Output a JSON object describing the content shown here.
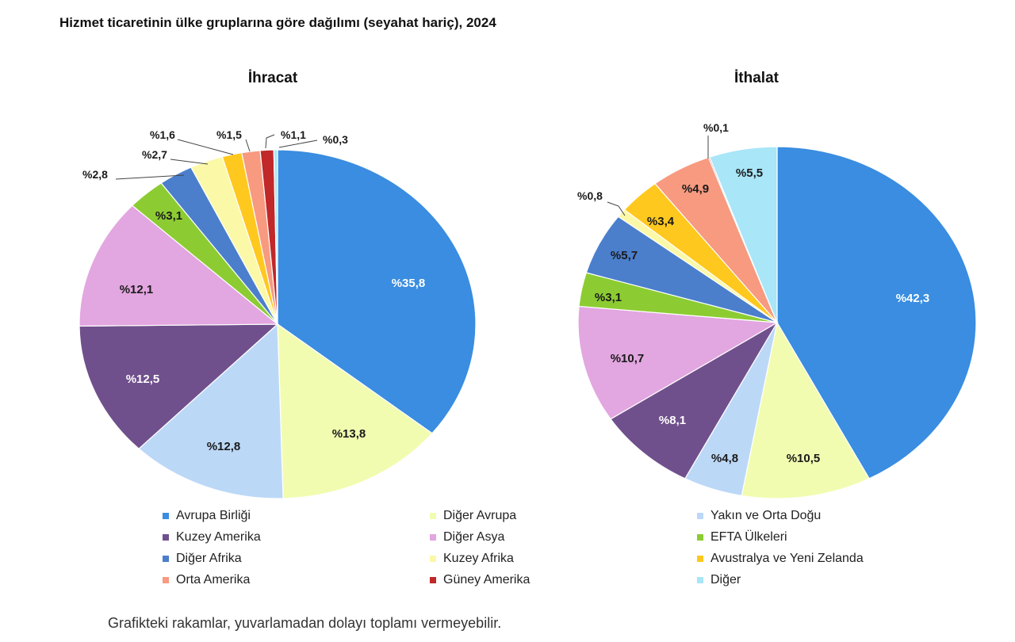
{
  "title": "Hizmet ticaretinin ülke gruplarına göre dağılımı (seyahat hariç), 2024",
  "footnote": "Grafikteki rakamlar, yuvarlamadan dolayı toplamı vermeyebilir.",
  "chart_data": [
    {
      "type": "pie",
      "title": "İhracat",
      "slices": [
        {
          "name": "Avrupa Birliği",
          "value": 35.8,
          "label": "%35,8",
          "color": "#3a8de0"
        },
        {
          "name": "Diğer Avrupa",
          "value": 13.8,
          "label": "%13,8",
          "color": "#f2fcb0"
        },
        {
          "name": "Yakın ve Orta Doğu",
          "value": 12.8,
          "label": "%12,8",
          "color": "#bcd8f7"
        },
        {
          "name": "Kuzey Amerika",
          "value": 12.5,
          "label": "%12,5",
          "color": "#70508c"
        },
        {
          "name": "Diğer Asya",
          "value": 12.1,
          "label": "%12,1",
          "color": "#e2a6e0"
        },
        {
          "name": "EFTA Ülkeleri",
          "value": 3.1,
          "label": "%3,1",
          "color": "#8ccc32"
        },
        {
          "name": "Diğer Afrika",
          "value": 2.8,
          "label": "%2,8",
          "color": "#4b7fcc"
        },
        {
          "name": "Kuzey Afrika",
          "value": 2.7,
          "label": "%2,7",
          "color": "#fbf8a8"
        },
        {
          "name": "Avustralya ve Yeni Zelanda",
          "value": 1.6,
          "label": "%1,6",
          "color": "#ffc81e"
        },
        {
          "name": "Orta Amerika",
          "value": 1.5,
          "label": "%1,5",
          "color": "#f79a80"
        },
        {
          "name": "Güney Amerika",
          "value": 1.1,
          "label": "%1,1",
          "color": "#c0282a"
        },
        {
          "name": "Diğer",
          "value": 0.3,
          "label": "%0,3",
          "color": "#a8e6f8"
        }
      ]
    },
    {
      "type": "pie",
      "title": "İthalat",
      "slices": [
        {
          "name": "Avrupa Birliği",
          "value": 42.3,
          "label": "%42,3",
          "color": "#3a8de0"
        },
        {
          "name": "Diğer Avrupa",
          "value": 10.5,
          "label": "%10,5",
          "color": "#f2fcb0"
        },
        {
          "name": "Yakın ve Orta Doğu",
          "value": 4.8,
          "label": "%4,8",
          "color": "#bcd8f7"
        },
        {
          "name": "Kuzey Amerika",
          "value": 8.1,
          "label": "%8,1",
          "color": "#70508c"
        },
        {
          "name": "Diğer Asya",
          "value": 10.7,
          "label": "%10,7",
          "color": "#e2a6e0"
        },
        {
          "name": "EFTA Ülkeleri",
          "value": 3.1,
          "label": "%3,1",
          "color": "#8ccc32"
        },
        {
          "name": "Diğer Afrika",
          "value": 5.7,
          "label": "%5,7",
          "color": "#4b7fcc"
        },
        {
          "name": "Kuzey Afrika",
          "value": 0.8,
          "label": "%0,8",
          "color": "#fbf8a8"
        },
        {
          "name": "Avustralya ve Yeni Zelanda",
          "value": 3.4,
          "label": "%3,4",
          "color": "#ffc81e"
        },
        {
          "name": "Orta Amerika",
          "value": 4.9,
          "label": "%4,9",
          "color": "#f79a80"
        },
        {
          "name": "Güney Amerika",
          "value": 0.1,
          "label": "%0,1",
          "color": "#c0282a"
        },
        {
          "name": "Diğer",
          "value": 5.5,
          "label": "%5,5",
          "color": "#a8e6f8"
        }
      ]
    }
  ],
  "legend": [
    {
      "label": "Avrupa Birliği",
      "color": "#3a8de0"
    },
    {
      "label": "Diğer Avrupa",
      "color": "#f2fcb0"
    },
    {
      "label": "Yakın ve Orta Doğu",
      "color": "#bcd8f7"
    },
    {
      "label": "Kuzey Amerika",
      "color": "#70508c"
    },
    {
      "label": "Diğer Asya",
      "color": "#e2a6e0"
    },
    {
      "label": "EFTA Ülkeleri",
      "color": "#8ccc32"
    },
    {
      "label": "Diğer Afrika",
      "color": "#4b7fcc"
    },
    {
      "label": "Kuzey Afrika",
      "color": "#fbf8a8"
    },
    {
      "label": "Avustralya ve Yeni Zelanda",
      "color": "#ffc81e"
    },
    {
      "label": "Orta Amerika",
      "color": "#f79a80"
    },
    {
      "label": "Güney Amerika",
      "color": "#c0282a"
    },
    {
      "label": "Diğer",
      "color": "#a8e6f8"
    }
  ]
}
